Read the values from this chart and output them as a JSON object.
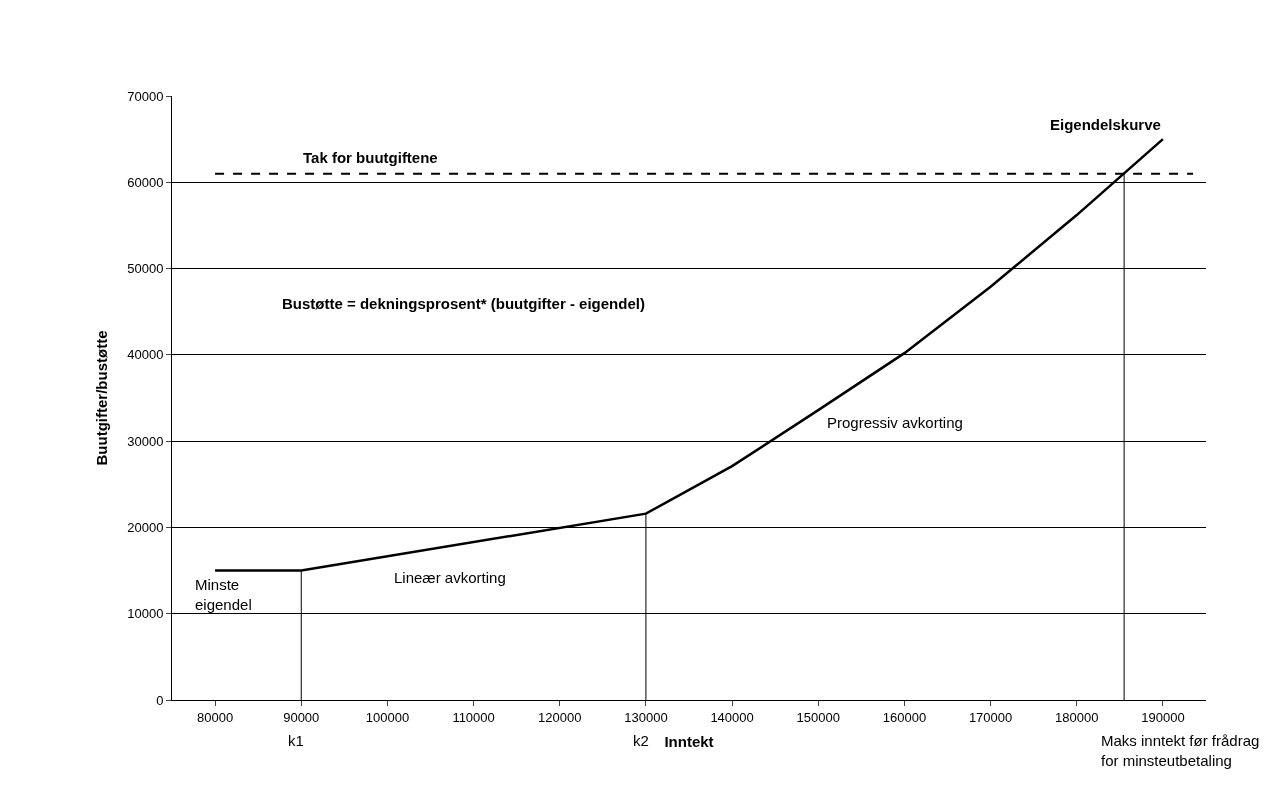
{
  "chart_data": {
    "type": "line",
    "xlabel": "Inntekt",
    "ylabel": "Buutgifter/bustøtte",
    "x": [
      80000,
      90000,
      130000,
      140000,
      150000,
      160000,
      170000,
      180000,
      190000
    ],
    "series": [
      {
        "name": "Eigendelskurve",
        "color": "#000000",
        "values": [
          15000,
          15000,
          21600,
          27100,
          33600,
          40200,
          47900,
          56200,
          65000
        ]
      },
      {
        "type": "line",
        "color": "#000000",
        "x": [
          90000,
          90000
        ],
        "values": [
          0,
          15000
        ]
      },
      {
        "type": "line",
        "color": "#000000",
        "x": [
          130000,
          130000
        ],
        "values": [
          0,
          21600
        ]
      },
      {
        "type": "line",
        "color": "#000000",
        "x": [
          185500,
          185500
        ],
        "values": [
          0,
          61000
        ]
      }
    ],
    "ref_lines": [
      {
        "axis": "y",
        "value": 61000,
        "label": "Tak for buutgiftene",
        "color": "#000000",
        "line_style": "dashed"
      }
    ],
    "annotations": [
      "Bustøtte = dekningsprosent* (buutgifter - eigendel)",
      "Minste eigendel",
      "Lineær avkorting",
      "Progressiv avkorting",
      {
        "text": "k1",
        "x": 90000,
        "y": 0
      },
      {
        "text": "k2",
        "x": 130000,
        "y": 0
      },
      {
        "text": "Maks inntekt før frådrag for minsteutbetaling",
        "x": 185500,
        "y": 0
      }
    ],
    "xlim": [
      75000,
      195000
    ],
    "xticks": [
      80000,
      90000,
      100000,
      110000,
      120000,
      130000,
      140000,
      150000,
      160000,
      170000,
      180000,
      190000
    ],
    "ylim": [
      0,
      70000
    ],
    "yticks": [
      0,
      10000,
      20000,
      30000,
      40000,
      50000,
      60000,
      70000
    ],
    "grid": "y",
    "marker": "none",
    "line_style": "solid"
  }
}
